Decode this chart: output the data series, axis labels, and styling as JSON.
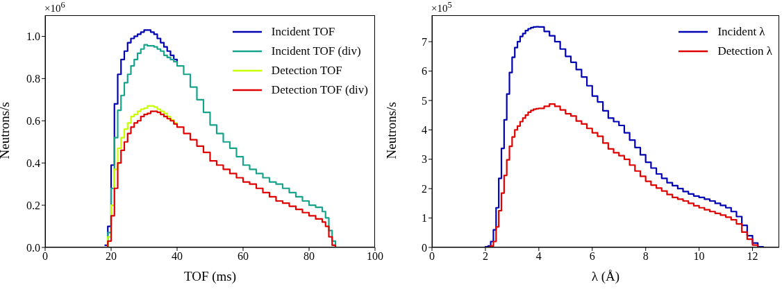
{
  "chart_data": [
    {
      "type": "step",
      "xlabel": "TOF (ms)",
      "ylabel": "Neutrons/s",
      "annotations": [
        "×10$^{6}$"
      ],
      "legend": "top right",
      "x": [
        0,
        18,
        19,
        20,
        21,
        22,
        23,
        24,
        25,
        26,
        27,
        28,
        29,
        30,
        31,
        32,
        33,
        34,
        35,
        36,
        37,
        38,
        39,
        40,
        42,
        44,
        46,
        48,
        50,
        52,
        54,
        56,
        58,
        60,
        62,
        64,
        66,
        68,
        70,
        72,
        74,
        76,
        78,
        80,
        82,
        84,
        85,
        86,
        87,
        88,
        100
      ],
      "series": [
        {
          "name": "Incident TOF",
          "color": "#0000b4",
          "values": [
            null,
            0.01,
            0.1,
            0.39,
            0.68,
            0.82,
            0.89,
            0.93,
            0.97,
            0.99,
            1.0,
            1.01,
            1.02,
            1.03,
            1.03,
            1.02,
            1.01,
            0.99,
            0.97,
            0.95,
            0.93,
            0.91,
            0.89,
            0.87,
            null,
            null,
            null,
            null,
            null,
            null,
            null,
            null,
            null,
            null,
            null,
            null,
            null,
            null,
            null,
            null,
            null,
            null,
            null,
            null,
            null,
            null,
            null,
            null,
            null,
            null,
            null
          ]
        },
        {
          "name": "Incident TOF (div)",
          "color": "#16a38a",
          "values": [
            0,
            0,
            0.07,
            0.28,
            0.52,
            0.65,
            0.72,
            0.78,
            0.82,
            0.86,
            0.89,
            0.92,
            0.94,
            0.96,
            0.955,
            0.955,
            0.95,
            0.94,
            0.93,
            0.91,
            0.9,
            0.89,
            0.88,
            0.86,
            0.82,
            0.76,
            0.7,
            0.64,
            0.58,
            0.54,
            0.5,
            0.47,
            0.43,
            0.39,
            0.37,
            0.35,
            0.33,
            0.31,
            0.3,
            0.28,
            0.26,
            0.24,
            0.22,
            0.2,
            0.19,
            0.17,
            0.14,
            0.08,
            0.03,
            0,
            0
          ]
        },
        {
          "name": "Detection TOF",
          "color": "#c8ff00",
          "values": [
            null,
            0,
            0.05,
            0.2,
            0.37,
            0.47,
            0.52,
            0.56,
            0.59,
            0.62,
            0.63,
            0.645,
            0.655,
            0.66,
            0.67,
            0.67,
            0.665,
            0.655,
            0.645,
            0.635,
            0.62,
            0.605,
            0.59,
            0.575,
            null,
            null,
            null,
            null,
            null,
            null,
            null,
            null,
            null,
            null,
            null,
            null,
            null,
            null,
            null,
            null,
            null,
            null,
            null,
            null,
            null,
            null,
            null,
            null,
            null,
            null,
            null
          ]
        },
        {
          "name": "Detection TOF (div)",
          "color": "#e00000",
          "values": [
            0,
            0,
            0.03,
            0.15,
            0.28,
            0.4,
            0.46,
            0.5,
            0.54,
            0.57,
            0.59,
            0.6,
            0.62,
            0.63,
            0.635,
            0.645,
            0.645,
            0.64,
            0.63,
            0.62,
            0.61,
            0.6,
            0.585,
            0.57,
            0.54,
            0.51,
            0.48,
            0.45,
            0.41,
            0.39,
            0.37,
            0.35,
            0.33,
            0.31,
            0.3,
            0.28,
            0.26,
            0.24,
            0.22,
            0.21,
            0.195,
            0.18,
            0.165,
            0.15,
            0.135,
            0.12,
            0.1,
            0.05,
            0.01,
            0,
            0
          ]
        }
      ],
      "xlim": [
        0,
        100
      ],
      "ylim": [
        0,
        1.1
      ],
      "xticks": [
        0,
        20,
        40,
        60,
        80,
        100
      ],
      "yticks": [
        {
          "value": 0,
          "label": "0.0"
        },
        {
          "value": 0.2,
          "label": "0.2"
        },
        {
          "value": 0.4,
          "label": "0.4"
        },
        {
          "value": 0.6,
          "label": "0.6"
        },
        {
          "value": 0.8,
          "label": "0.8"
        },
        {
          "value": 1,
          "label": "1.0"
        }
      ]
    },
    {
      "type": "step",
      "xlabel": "λ (Å)",
      "ylabel": "Neutrons/s",
      "annotations": [
        "×10$^{5}$"
      ],
      "legend": "top right",
      "x": [
        0,
        2.0,
        2.1,
        2.2,
        2.3,
        2.4,
        2.5,
        2.6,
        2.7,
        2.8,
        2.9,
        3.0,
        3.1,
        3.2,
        3.3,
        3.4,
        3.5,
        3.6,
        3.7,
        3.8,
        3.9,
        4.0,
        4.2,
        4.4,
        4.6,
        4.8,
        5.0,
        5.2,
        5.4,
        5.6,
        5.8,
        6.0,
        6.2,
        6.4,
        6.6,
        6.8,
        7.0,
        7.2,
        7.4,
        7.6,
        7.8,
        8.0,
        8.2,
        8.4,
        8.6,
        8.8,
        9.0,
        9.2,
        9.4,
        9.6,
        9.8,
        10.0,
        10.2,
        10.4,
        10.6,
        10.8,
        11.0,
        11.2,
        11.4,
        11.6,
        11.8,
        12.0,
        12.2,
        12.4
      ],
      "series": [
        {
          "name": "Incident λ",
          "color": "#0000b4",
          "values": [
            0,
            0.02,
            0.05,
            0.2,
            0.6,
            1.35,
            2.35,
            3.37,
            4.34,
            5.22,
            5.95,
            6.47,
            6.8,
            7.0,
            7.18,
            7.28,
            7.38,
            7.44,
            7.48,
            7.5,
            7.51,
            7.5,
            7.35,
            7.2,
            7.0,
            6.75,
            6.5,
            6.3,
            6.05,
            5.8,
            5.5,
            5.15,
            4.95,
            4.65,
            4.4,
            4.28,
            4.15,
            3.9,
            3.65,
            3.4,
            3.15,
            2.9,
            2.7,
            2.5,
            2.35,
            2.2,
            2.1,
            2.0,
            1.9,
            1.82,
            1.75,
            1.7,
            1.64,
            1.58,
            1.5,
            1.43,
            1.35,
            1.22,
            1.05,
            0.75,
            0.4,
            0.15,
            0.02,
            0
          ]
        },
        {
          "name": "Detection λ",
          "color": "#e00000",
          "values": [
            null,
            null,
            0.01,
            0.05,
            0.2,
            0.7,
            1.25,
            1.85,
            2.45,
            2.98,
            3.44,
            3.76,
            4.0,
            4.13,
            4.28,
            4.4,
            4.5,
            4.6,
            4.66,
            4.7,
            4.72,
            4.73,
            4.8,
            4.88,
            4.8,
            4.68,
            4.55,
            4.47,
            4.3,
            4.2,
            4.05,
            3.9,
            3.78,
            3.55,
            3.35,
            3.22,
            3.12,
            3.0,
            2.8,
            2.6,
            2.42,
            2.25,
            2.12,
            2.02,
            1.92,
            1.8,
            1.7,
            1.64,
            1.58,
            1.5,
            1.42,
            1.35,
            1.28,
            1.22,
            1.16,
            1.1,
            1.03,
            0.94,
            0.8,
            0.52,
            0.28,
            0.08,
            0,
            null
          ]
        }
      ],
      "xlim": [
        0,
        13
      ],
      "ylim": [
        0,
        7.9
      ],
      "xticks": [
        0,
        2,
        4,
        6,
        8,
        10,
        12
      ],
      "yticks": [
        0,
        1,
        2,
        3,
        4,
        5,
        6,
        7
      ]
    }
  ]
}
